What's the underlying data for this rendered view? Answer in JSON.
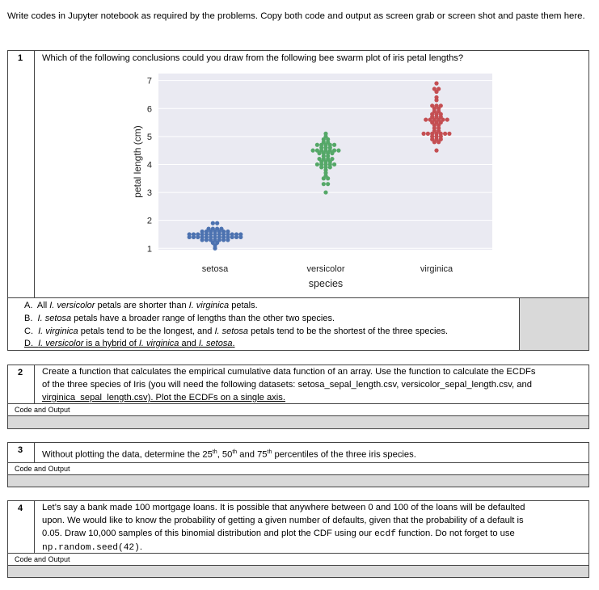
{
  "intro": "Write codes in Jupyter notebook as required by the problems. Copy both code and output as screen grab or screen shot and paste them here.",
  "q1": {
    "num": "1",
    "text": "Which of the following conclusions could you draw from the following bee swarm plot of iris petal lengths?",
    "options": {
      "a": {
        "letter": "A.",
        "t1": "All ",
        "i1": "I. versicolor",
        "t2": " petals are shorter than ",
        "i2": "I. virginica",
        "t3": " petals."
      },
      "b": {
        "letter": "B.",
        "i1": "I. setosa",
        "t2": " petals have a broader range of lengths than the other two species."
      },
      "c": {
        "letter": "C.",
        "i1": "I. virginica",
        "t2": " petals tend to be the longest, and ",
        "i2": "I. setosa",
        "t3": " petals tend to be the shortest of the three species."
      },
      "d": {
        "letter": "D.",
        "i1": "I. versicolor",
        "t2": " is a hybrid of ",
        "i2": "I. virginica",
        "t3": " and ",
        "i3": "I. setosa",
        "t4": "."
      }
    }
  },
  "q2": {
    "num": "2",
    "line1": "Create a function that calculates the empirical cumulative data function of an array. Use the function to calculate the ECDFs",
    "line2": "of the three species of Iris (you will need the following datasets: setosa_sepal_length.csv, versicolor_sepal_length.csv, and",
    "line3": "virginica_sepal_length.csv). Plot the ECDFs on  a single axis.",
    "code_label": "Code and Output"
  },
  "q3": {
    "num": "3",
    "t1": "Without plotting the data, determine the 25",
    "s1": "th",
    "t2": ", 50",
    "s2": "th",
    "t3": " and 75",
    "s3": "th",
    "t4": " percentiles of the three iris species.",
    "code_label": "Code and Output"
  },
  "q4": {
    "num": "4",
    "line1": "Let’s say a bank made 100 mortgage loans. It is possible that anywhere between 0 and 100 of the loans will be defaulted",
    "line2": "upon. We would like to know the probability of getting a given number of defaults, given that the probability of a default is",
    "line3a": "0.05. Draw 10,000 samples of this binomial distribution and plot the CDF using our ",
    "line3code": "ecdf",
    "line3b": " function.  Do not forget to use",
    "line4code": "np.random.seed(42)",
    "line4b": ".",
    "code_label": "Code and Output"
  },
  "chart_data": {
    "type": "scatter",
    "subtype": "beeswarm",
    "categories": [
      "setosa",
      "versicolor",
      "virginica"
    ],
    "xlabel": "species",
    "ylabel": "petal length (cm)",
    "ylim": [
      0.95,
      7.25
    ],
    "yticks": [
      "1",
      "2",
      "3",
      "4",
      "5",
      "6",
      "7"
    ],
    "grid": true,
    "background": "#eaeaf2",
    "colors": [
      "#4c72b0",
      "#55a868",
      "#c44e52"
    ],
    "series": [
      {
        "values": [
          1.4,
          1.4,
          1.3,
          1.5,
          1.4,
          1.7,
          1.4,
          1.5,
          1.4,
          1.5,
          1.5,
          1.6,
          1.4,
          1.1,
          1.2,
          1.5,
          1.3,
          1.4,
          1.7,
          1.5,
          1.7,
          1.5,
          1.0,
          1.7,
          1.9,
          1.6,
          1.6,
          1.5,
          1.4,
          1.6,
          1.6,
          1.5,
          1.5,
          1.4,
          1.5,
          1.2,
          1.3,
          1.4,
          1.3,
          1.5,
          1.3,
          1.3,
          1.3,
          1.6,
          1.9,
          1.4,
          1.6,
          1.4,
          1.5,
          1.4
        ]
      },
      {
        "values": [
          4.7,
          4.5,
          4.9,
          4.0,
          4.6,
          4.5,
          4.7,
          3.3,
          4.6,
          3.9,
          3.5,
          4.2,
          4.0,
          4.7,
          3.6,
          4.4,
          4.5,
          4.1,
          4.5,
          3.9,
          4.8,
          4.0,
          4.9,
          4.7,
          4.3,
          4.4,
          4.8,
          5.0,
          4.5,
          3.5,
          3.8,
          3.7,
          3.9,
          5.1,
          4.5,
          4.5,
          4.7,
          4.4,
          4.1,
          4.0,
          4.4,
          4.6,
          4.0,
          3.3,
          4.2,
          4.2,
          4.2,
          4.3,
          3.0,
          4.1
        ]
      },
      {
        "values": [
          6.0,
          5.1,
          5.9,
          5.6,
          5.8,
          6.6,
          4.5,
          6.3,
          5.8,
          6.1,
          5.1,
          5.3,
          5.5,
          5.0,
          5.1,
          5.3,
          5.5,
          6.7,
          6.9,
          5.0,
          5.7,
          4.9,
          6.7,
          4.9,
          5.7,
          6.0,
          4.8,
          4.9,
          5.6,
          5.8,
          6.1,
          6.4,
          5.6,
          5.1,
          5.6,
          6.1,
          5.6,
          5.5,
          4.8,
          5.4,
          5.6,
          5.1,
          5.1,
          5.9,
          5.7,
          5.2,
          5.0,
          5.2,
          5.4,
          5.1
        ]
      }
    ]
  }
}
